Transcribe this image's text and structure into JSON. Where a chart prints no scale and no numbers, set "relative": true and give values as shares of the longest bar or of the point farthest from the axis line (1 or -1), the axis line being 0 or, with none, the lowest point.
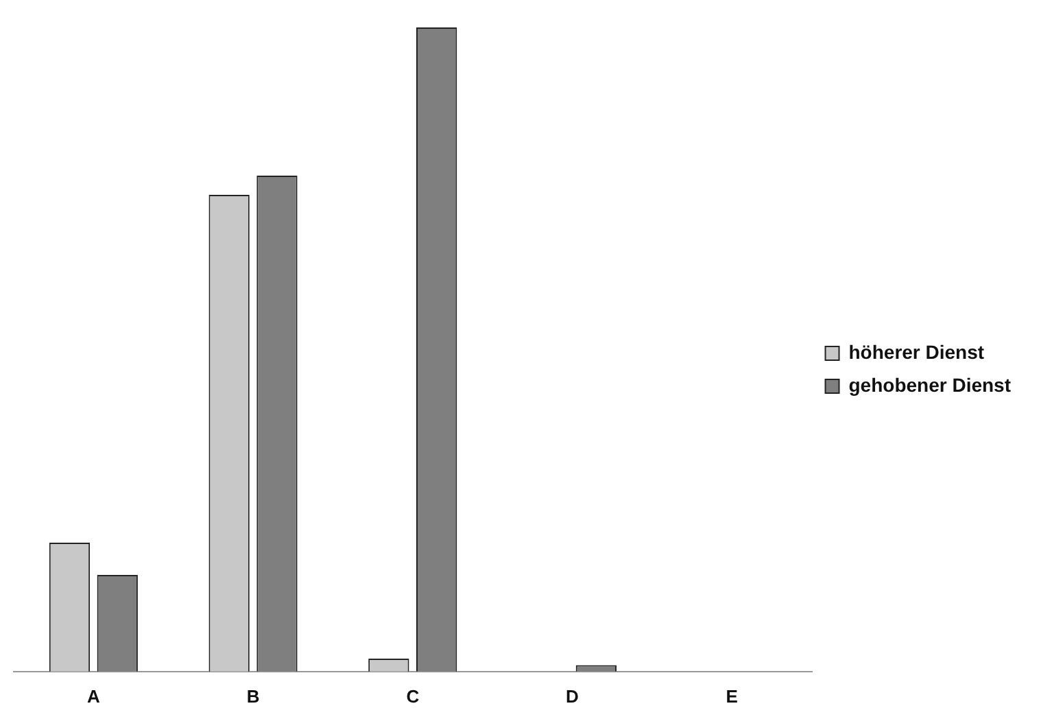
{
  "chart_data": {
    "type": "bar",
    "relative": true,
    "categories": [
      "A",
      "B",
      "C",
      "D",
      "E"
    ],
    "series": [
      {
        "name": "höherer Dienst",
        "color": "#c8c8c8",
        "values": [
          0.2,
          0.74,
          0.02,
          0,
          0
        ]
      },
      {
        "name": "gehobener Dienst",
        "color": "#7f7f7f",
        "values": [
          0.15,
          0.77,
          1,
          0.01,
          0
        ]
      }
    ],
    "legend": "right",
    "grid": false
  }
}
